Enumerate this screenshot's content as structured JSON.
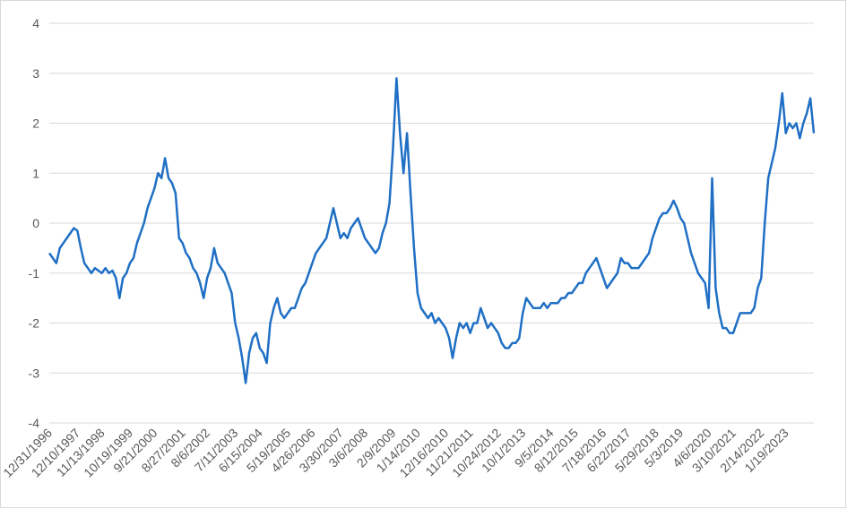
{
  "chart_data": {
    "type": "line",
    "categories": [
      "12/31/1996",
      null,
      null,
      null,
      null,
      null,
      null,
      null,
      "12/10/1997",
      null,
      null,
      null,
      null,
      null,
      null,
      "11/13/1998",
      null,
      null,
      null,
      null,
      null,
      null,
      null,
      "10/19/1999",
      null,
      null,
      null,
      null,
      null,
      null,
      "9/21/2000",
      null,
      null,
      null,
      null,
      null,
      null,
      null,
      "8/27/2001",
      null,
      null,
      null,
      null,
      null,
      null,
      "8/6/2002",
      null,
      null,
      null,
      null,
      null,
      null,
      null,
      "7/11/2003",
      null,
      null,
      null,
      null,
      null,
      null,
      "6/15/2004",
      null,
      null,
      null,
      null,
      null,
      null,
      null,
      "5/19/2005",
      null,
      null,
      null,
      null,
      null,
      null,
      "4/26/2006",
      null,
      null,
      null,
      null,
      null,
      null,
      null,
      "3/30/2007",
      null,
      null,
      null,
      null,
      null,
      null,
      "3/6/2008",
      null,
      null,
      null,
      null,
      null,
      null,
      null,
      "2/9/2009",
      null,
      null,
      null,
      null,
      null,
      null,
      "1/14/2010",
      null,
      null,
      null,
      null,
      null,
      null,
      null,
      "12/16/2010",
      null,
      null,
      null,
      null,
      null,
      null,
      "11/21/2011",
      null,
      null,
      null,
      null,
      null,
      null,
      null,
      "10/24/2012",
      null,
      null,
      null,
      null,
      null,
      null,
      "10/1/2013",
      null,
      null,
      null,
      null,
      null,
      null,
      null,
      "9/5/2014",
      null,
      null,
      null,
      null,
      null,
      null,
      "8/12/2015",
      null,
      null,
      null,
      null,
      null,
      null,
      null,
      "7/18/2016",
      null,
      null,
      null,
      null,
      null,
      null,
      "6/22/2017",
      null,
      null,
      null,
      null,
      null,
      null,
      null,
      "5/29/2018",
      null,
      null,
      null,
      null,
      null,
      null,
      "5/3/2019",
      null,
      null,
      null,
      null,
      null,
      null,
      null,
      "4/6/2020",
      null,
      null,
      null,
      null,
      null,
      null,
      "3/10/2021",
      null,
      null,
      null,
      null,
      null,
      null,
      null,
      "2/14/2022",
      null,
      null,
      null,
      null,
      null,
      null,
      "1/19/2023",
      null,
      null,
      null,
      null,
      null,
      null,
      null,
      null
    ],
    "series": [
      {
        "color": "#1f6fc5",
        "values": [
          -0.6,
          -0.7,
          -0.8,
          -0.5,
          -0.4,
          -0.3,
          -0.2,
          -0.1,
          -0.15,
          -0.5,
          -0.8,
          -0.9,
          -1.0,
          -0.9,
          -0.95,
          -1.0,
          -0.9,
          -1.0,
          -0.95,
          -1.1,
          -1.5,
          -1.1,
          -1.0,
          -0.8,
          -0.7,
          -0.4,
          -0.2,
          0.0,
          0.3,
          0.5,
          0.7,
          1.0,
          0.9,
          1.3,
          0.9,
          0.8,
          0.6,
          -0.3,
          -0.4,
          -0.6,
          -0.7,
          -0.9,
          -1.0,
          -1.2,
          -1.5,
          -1.1,
          -0.9,
          -0.5,
          -0.8,
          -0.9,
          -1.0,
          -1.2,
          -1.4,
          -2.0,
          -2.3,
          -2.7,
          -3.2,
          -2.6,
          -2.3,
          -2.2,
          -2.5,
          -2.6,
          -2.8,
          -2.0,
          -1.7,
          -1.5,
          -1.8,
          -1.9,
          -1.8,
          -1.7,
          -1.7,
          -1.5,
          -1.3,
          -1.2,
          -1.0,
          -0.8,
          -0.6,
          -0.5,
          -0.4,
          -0.3,
          0.0,
          0.3,
          0.0,
          -0.3,
          -0.2,
          -0.3,
          -0.1,
          0.0,
          0.1,
          -0.1,
          -0.3,
          -0.4,
          -0.5,
          -0.6,
          -0.5,
          -0.2,
          0.0,
          0.4,
          1.5,
          2.9,
          1.8,
          1.0,
          1.8,
          0.6,
          -0.5,
          -1.4,
          -1.7,
          -1.8,
          -1.9,
          -1.8,
          -2.0,
          -1.9,
          -2.0,
          -2.1,
          -2.3,
          -2.7,
          -2.3,
          -2.0,
          -2.1,
          -2.0,
          -2.2,
          -2.0,
          -2.0,
          -1.7,
          -1.9,
          -2.1,
          -2.0,
          -2.1,
          -2.2,
          -2.4,
          -2.5,
          -2.5,
          -2.4,
          -2.4,
          -2.3,
          -1.8,
          -1.5,
          -1.6,
          -1.7,
          -1.7,
          -1.7,
          -1.6,
          -1.7,
          -1.6,
          -1.6,
          -1.6,
          -1.5,
          -1.5,
          -1.4,
          -1.4,
          -1.3,
          -1.2,
          -1.2,
          -1.0,
          -0.9,
          -0.8,
          -0.7,
          -0.9,
          -1.1,
          -1.3,
          -1.2,
          -1.1,
          -1.0,
          -0.7,
          -0.8,
          -0.8,
          -0.9,
          -0.9,
          -0.9,
          -0.8,
          -0.7,
          -0.6,
          -0.3,
          -0.1,
          0.1,
          0.2,
          0.2,
          0.3,
          0.45,
          0.3,
          0.1,
          0.0,
          -0.3,
          -0.6,
          -0.8,
          -1.0,
          -1.1,
          -1.2,
          -1.7,
          0.9,
          -1.3,
          -1.8,
          -2.1,
          -2.1,
          -2.2,
          -2.2,
          -2.0,
          -1.8,
          -1.8,
          -1.8,
          -1.8,
          -1.7,
          -1.3,
          -1.1,
          0.0,
          0.9,
          1.2,
          1.5,
          2.0,
          2.6,
          1.8,
          2.0,
          1.9,
          2.0,
          1.7,
          2.0,
          2.2,
          2.5,
          1.8
        ]
      }
    ],
    "ylim": [
      -4,
      4
    ],
    "yticks": [
      -4,
      -3,
      -2,
      -1,
      0,
      1,
      2,
      3,
      4
    ],
    "grid": true
  }
}
